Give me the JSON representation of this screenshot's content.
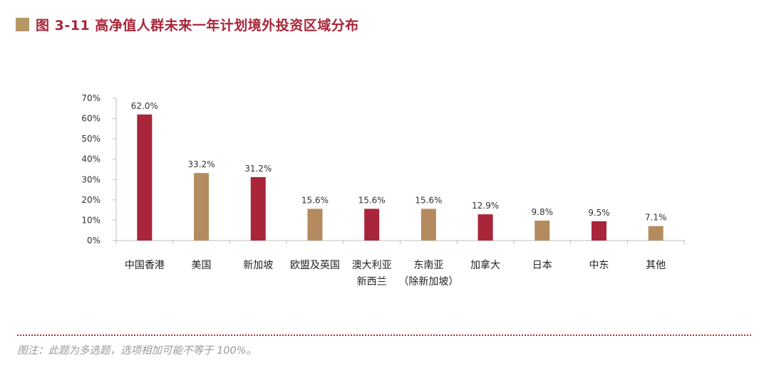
{
  "header": {
    "title": "图 3-11  高净值人群未来一年计划境外投资区域分布"
  },
  "footnote": "图注：此题为多选题，选项相加可能不等于 100%。",
  "colors": {
    "accent_red": "#a8253a",
    "accent_tan": "#b38b5e",
    "marker": "#b79869"
  },
  "chart_data": {
    "type": "bar",
    "title": "",
    "xlabel": "",
    "ylabel": "",
    "ylim": [
      0,
      70
    ],
    "yticks": [
      "0%",
      "10%",
      "20%",
      "30%",
      "40%",
      "50%",
      "60%",
      "70%"
    ],
    "categories": [
      [
        "中国香港"
      ],
      [
        "美国"
      ],
      [
        "新加坡"
      ],
      [
        "欧盟及英国"
      ],
      [
        "澳大利亚",
        "新西兰"
      ],
      [
        "东南亚",
        "（除新加坡）"
      ],
      [
        "加拿大"
      ],
      [
        "日本"
      ],
      [
        "中东"
      ],
      [
        "其他"
      ]
    ],
    "values": [
      62.0,
      33.2,
      31.2,
      15.6,
      15.6,
      15.6,
      12.9,
      9.8,
      9.5,
      7.1
    ],
    "labels": [
      "62.0%",
      "33.2%",
      "31.2%",
      "15.6%",
      "15.6%",
      "15.6%",
      "12.9%",
      "9.8%",
      "9.5%",
      "7.1%"
    ],
    "bar_colors": [
      "#a8253a",
      "#b38b5e",
      "#a8253a",
      "#b38b5e",
      "#a8253a",
      "#b38b5e",
      "#a8253a",
      "#b38b5e",
      "#a8253a",
      "#b38b5e"
    ],
    "grid": false,
    "legend": "none"
  }
}
